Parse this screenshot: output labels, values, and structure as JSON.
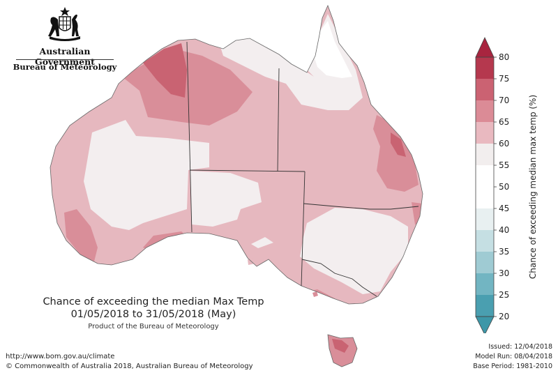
{
  "branding": {
    "government": "Australian Government",
    "agency": "Bureau of Meteorology",
    "crest_icon": "coat-of-arms-icon"
  },
  "caption": {
    "title": "Chance of exceeding the median Max Temp",
    "period": "01/05/2018 to 31/05/2018 (May)",
    "product": "Product of the Bureau of Meteorology"
  },
  "footer": {
    "url": "http://www.bom.gov.au/climate",
    "copyright": "© Commonwealth of Australia 2018, Australian Bureau of Meteorology"
  },
  "issue": {
    "issued": "Issued: 12/04/2018",
    "model_run": "Model Run: 08/04/2018",
    "base_period": "Base Period: 1981-2010"
  },
  "legend": {
    "title": "Chance of exceeding median max temp (%)",
    "ticks": [
      "80",
      "75",
      "70",
      "65",
      "60",
      "55",
      "50",
      "45",
      "40",
      "35",
      "30",
      "25",
      "20"
    ],
    "bands": [
      {
        "range": "75-80",
        "color": "#b5384e"
      },
      {
        "range": "70-75",
        "color": "#cb6272"
      },
      {
        "range": "65-70",
        "color": "#db8b96"
      },
      {
        "range": "60-65",
        "color": "#e9b9c0"
      },
      {
        "range": "55-60",
        "color": "#f2eeee"
      },
      {
        "range": "50-55",
        "color": "#ffffff"
      },
      {
        "range": "45-50",
        "color": "#ffffff"
      },
      {
        "range": "40-45",
        "color": "#e8f0f1"
      },
      {
        "range": "35-40",
        "color": "#c5dfe3"
      },
      {
        "range": "30-35",
        "color": "#9fcbd3"
      },
      {
        "range": "25-30",
        "color": "#72b5c2"
      },
      {
        "range": "20-25",
        "color": "#4a9fb0"
      }
    ],
    "over_color": "#a8253f",
    "under_color": "#3d97a8"
  }
}
